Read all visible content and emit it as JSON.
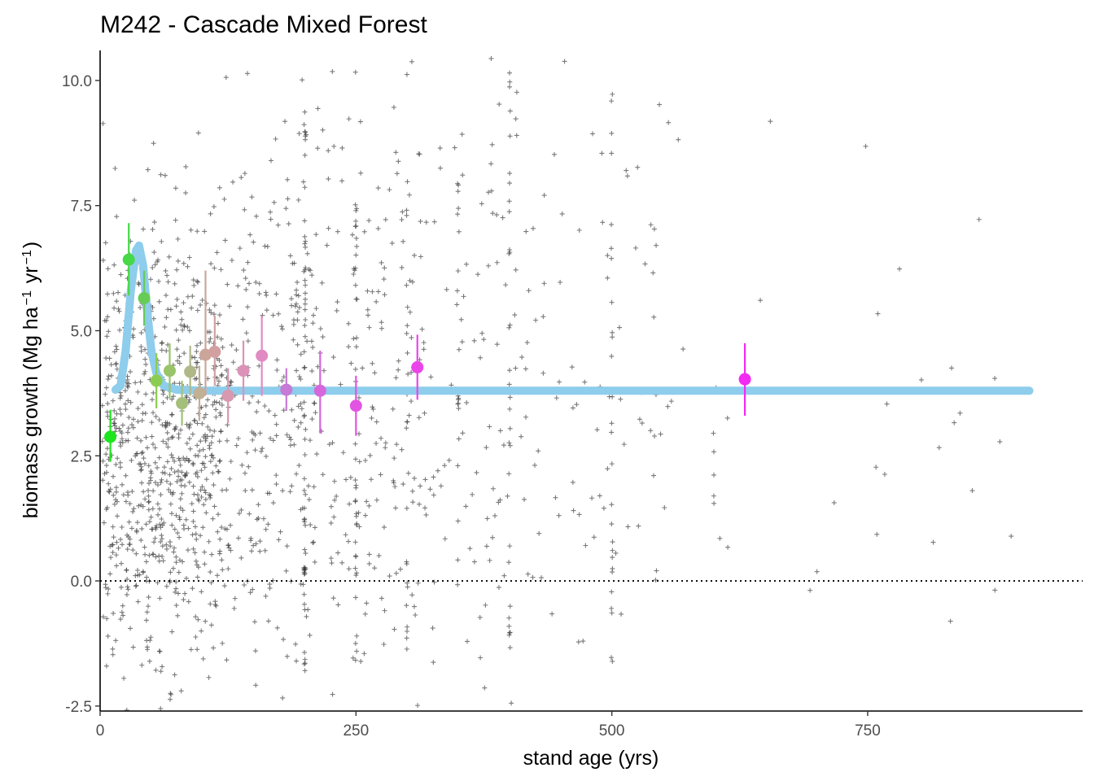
{
  "chart_data": {
    "type": "scatter",
    "title": "M242 - Cascade Mixed Forest",
    "xlabel": "stand age (yrs)",
    "ylabel": {
      "base": "biomass growth (Mg ha",
      "sup1": "−1",
      "mid": " yr",
      "sup2": "−1",
      "end": ")"
    },
    "xlim": [
      0,
      960
    ],
    "ylim": [
      -2.6,
      10.6
    ],
    "x_ticks": [
      0,
      250,
      500,
      750
    ],
    "x_tick_labels": [
      "0",
      "250",
      "500",
      "750"
    ],
    "y_ticks": [
      -2.5,
      0.0,
      2.5,
      5.0,
      7.5,
      10.0
    ],
    "y_tick_labels": [
      "-2.5",
      "0.0",
      "2.5",
      "5.0",
      "7.5",
      "10.0"
    ],
    "grid": false,
    "reference_line": {
      "y": 0.0,
      "style": "dotted",
      "color": "#000000"
    },
    "raw_observations_color": "#333333",
    "fit_line": {
      "color": "#8ecdec",
      "points": [
        [
          15,
          3.82
        ],
        [
          20,
          3.9
        ],
        [
          25,
          4.6
        ],
        [
          30,
          5.8
        ],
        [
          35,
          6.6
        ],
        [
          38,
          6.7
        ],
        [
          42,
          6.3
        ],
        [
          46,
          5.4
        ],
        [
          50,
          4.6
        ],
        [
          55,
          4.15
        ],
        [
          62,
          3.9
        ],
        [
          75,
          3.82
        ],
        [
          100,
          3.8
        ],
        [
          200,
          3.8
        ],
        [
          400,
          3.8
        ],
        [
          600,
          3.8
        ],
        [
          908,
          3.8
        ]
      ]
    },
    "binned_means": [
      {
        "x": 10,
        "y": 2.88,
        "low": 2.38,
        "high": 3.42,
        "color": "#1ee61e"
      },
      {
        "x": 28,
        "y": 6.42,
        "low": 5.7,
        "high": 7.15,
        "color": "#46d846"
      },
      {
        "x": 43,
        "y": 5.65,
        "low": 5.1,
        "high": 6.2,
        "color": "#66cc55"
      },
      {
        "x": 55,
        "y": 4.0,
        "low": 3.45,
        "high": 4.55,
        "color": "#8ccc50"
      },
      {
        "x": 68,
        "y": 4.2,
        "low": 3.65,
        "high": 4.75,
        "color": "#99c46a"
      },
      {
        "x": 80,
        "y": 3.55,
        "low": 3.1,
        "high": 4.0,
        "color": "#a3bf7a"
      },
      {
        "x": 88,
        "y": 4.18,
        "low": 3.7,
        "high": 4.7,
        "color": "#b0b888"
      },
      {
        "x": 97,
        "y": 3.75,
        "low": 3.2,
        "high": 4.3,
        "color": "#c2b095"
      },
      {
        "x": 103,
        "y": 4.52,
        "low": 3.7,
        "high": 6.2,
        "color": "#cca59a"
      },
      {
        "x": 112,
        "y": 4.58,
        "low": 3.9,
        "high": 5.3,
        "color": "#d2a0a0"
      },
      {
        "x": 125,
        "y": 3.7,
        "low": 3.15,
        "high": 4.25,
        "color": "#d898b0"
      },
      {
        "x": 140,
        "y": 4.2,
        "low": 3.6,
        "high": 4.8,
        "color": "#dc92b8"
      },
      {
        "x": 158,
        "y": 4.5,
        "low": 3.7,
        "high": 5.3,
        "color": "#e08cc2"
      },
      {
        "x": 182,
        "y": 3.82,
        "low": 3.4,
        "high": 4.25,
        "color": "#c67ad6"
      },
      {
        "x": 215,
        "y": 3.8,
        "low": 2.95,
        "high": 4.6,
        "color": "#d666dc"
      },
      {
        "x": 250,
        "y": 3.5,
        "low": 2.9,
        "high": 4.1,
        "color": "#e255e2"
      },
      {
        "x": 310,
        "y": 4.27,
        "low": 3.62,
        "high": 4.92,
        "color": "#ea45ea"
      },
      {
        "x": 630,
        "y": 4.03,
        "low": 3.3,
        "high": 4.75,
        "color": "#f22af2"
      }
    ],
    "scatter_sampling": {
      "clusters": [
        {
          "x_min": 2,
          "x_max": 120,
          "y_mean": 2.6,
          "y_sd": 2.4,
          "count": 780
        },
        {
          "x_min": 120,
          "x_max": 210,
          "y_mean": 3.2,
          "y_sd": 2.9,
          "count": 260
        },
        {
          "x_min": 210,
          "x_max": 320,
          "y_mean": 3.6,
          "y_sd": 3.0,
          "count": 190
        },
        {
          "x_min": 320,
          "x_max": 420,
          "y_mean": 3.5,
          "y_sd": 3.3,
          "count": 95
        },
        {
          "x_min": 420,
          "x_max": 560,
          "y_mean": 3.8,
          "y_sd": 3.3,
          "count": 85
        },
        {
          "x_min": 560,
          "x_max": 910,
          "y_mean": 3.0,
          "y_sd": 3.2,
          "count": 32
        }
      ],
      "stacks": [
        {
          "x": 200,
          "y_min": -2.2,
          "y_max": 9.4,
          "count": 55
        },
        {
          "x": 250,
          "y_min": -2.0,
          "y_max": 10.4,
          "count": 40
        },
        {
          "x": 300,
          "y_min": -1.2,
          "y_max": 10.3,
          "count": 22
        },
        {
          "x": 350,
          "y_min": -1.5,
          "y_max": 8.0,
          "count": 18
        },
        {
          "x": 400,
          "y_min": -1.9,
          "y_max": 10.3,
          "count": 30
        },
        {
          "x": 500,
          "y_min": -1.7,
          "y_max": 9.9,
          "count": 25
        },
        {
          "x": 600,
          "y_min": 1.5,
          "y_max": 3.0,
          "count": 5
        }
      ],
      "seed": 242
    }
  }
}
